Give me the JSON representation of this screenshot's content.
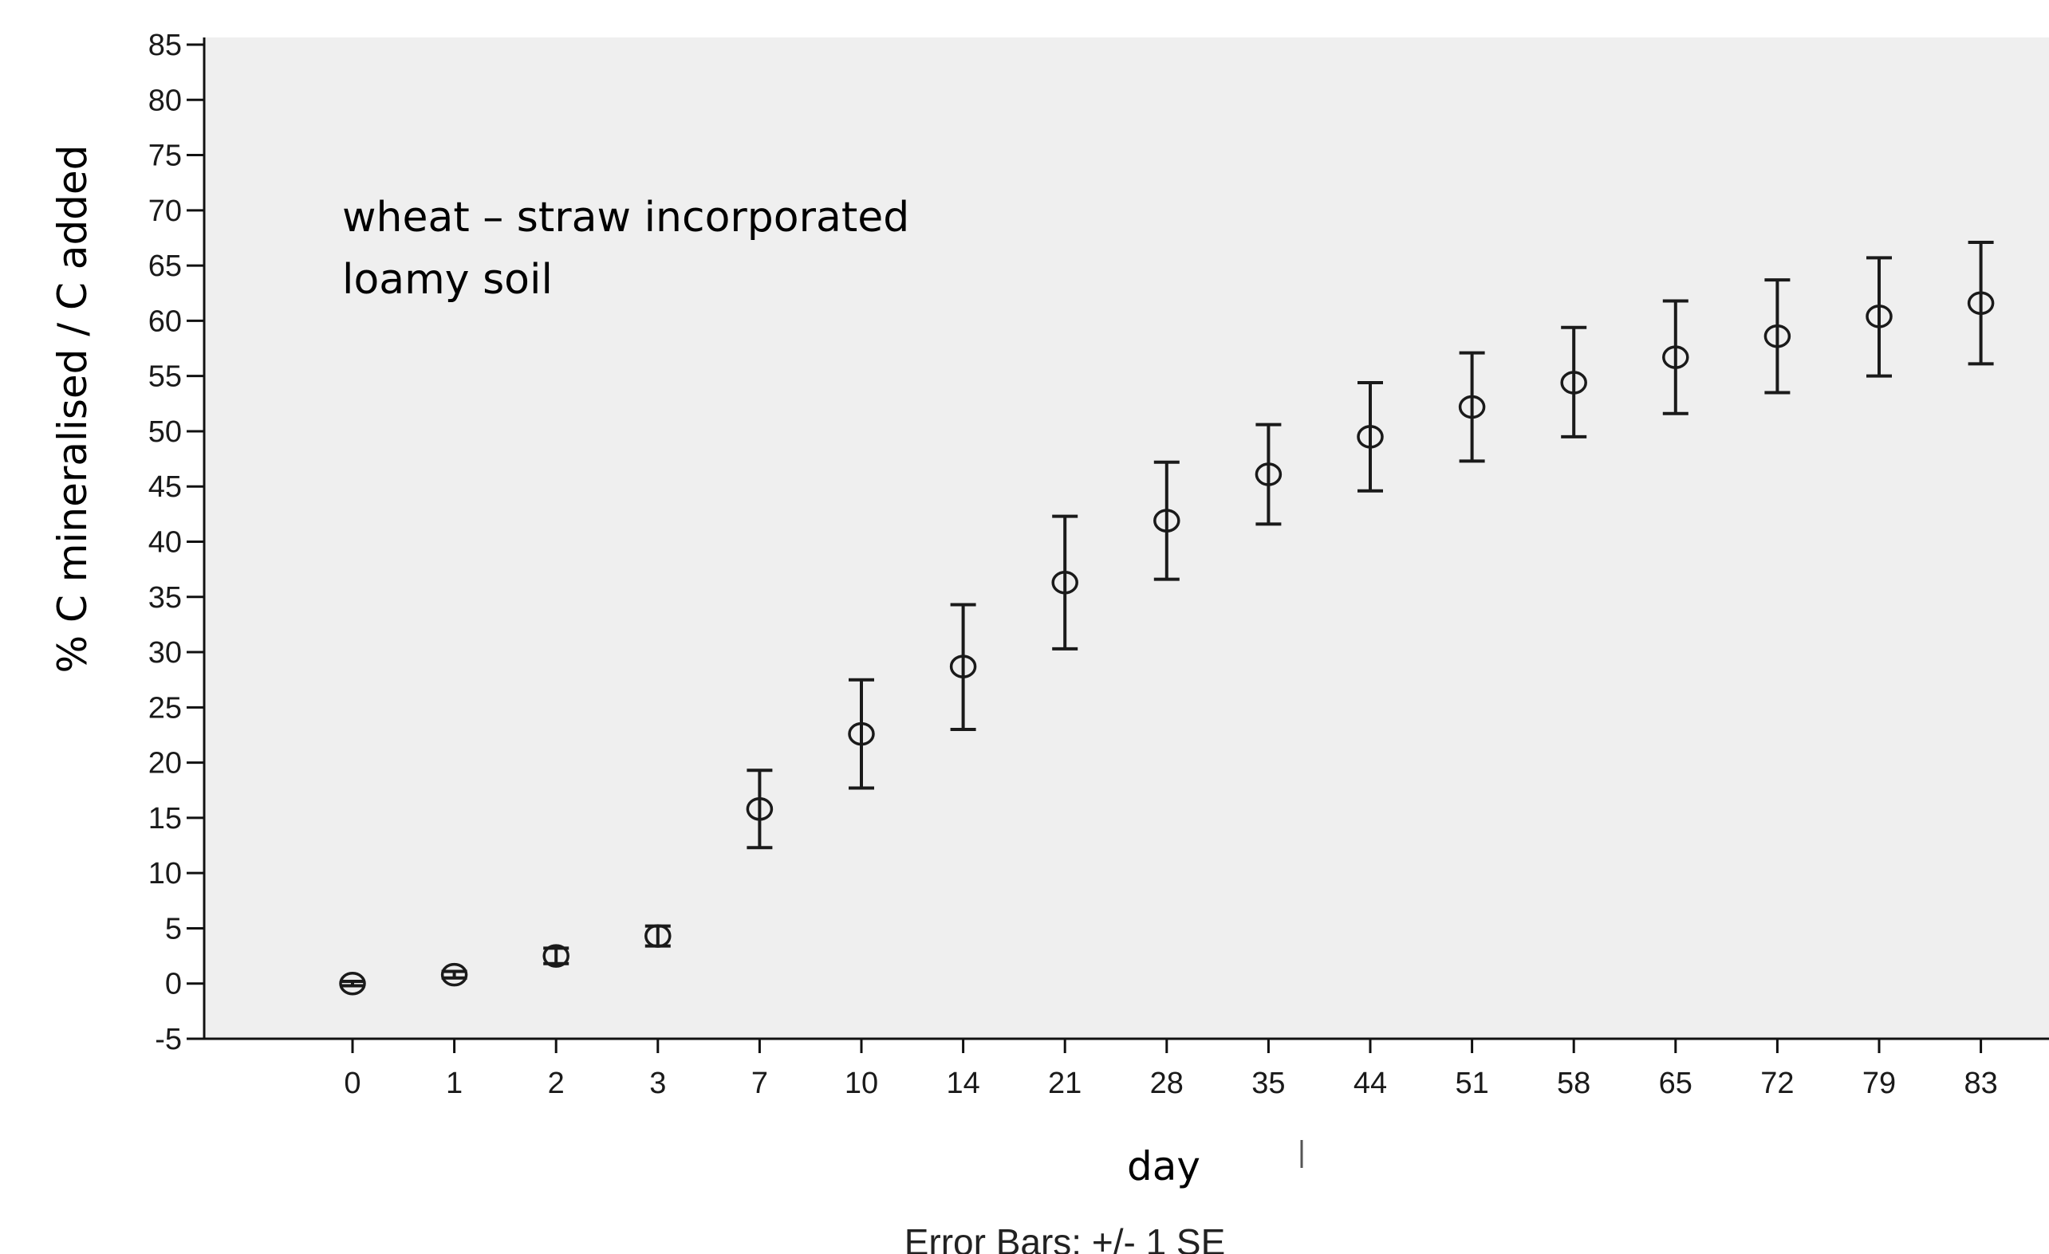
{
  "chart_data": {
    "type": "scatter",
    "x_categories": [
      "0",
      "1",
      "2",
      "3",
      "7",
      "10",
      "14",
      "21",
      "28",
      "35",
      "44",
      "51",
      "58",
      "65",
      "72",
      "79",
      "83"
    ],
    "series": [
      {
        "values": [
          0.0,
          0.8,
          2.5,
          4.3,
          15.8,
          22.6,
          28.7,
          36.3,
          41.9,
          46.1,
          49.5,
          52.2,
          54.4,
          56.7,
          58.6,
          60.4,
          61.6
        ],
        "error_lower": [
          -0.2,
          0.5,
          1.8,
          3.4,
          12.3,
          17.7,
          23.0,
          30.3,
          36.6,
          41.6,
          44.6,
          47.3,
          49.5,
          51.6,
          53.5,
          55.0,
          56.1
        ],
        "error_upper": [
          0.2,
          1.1,
          3.2,
          5.2,
          19.3,
          27.5,
          34.3,
          42.3,
          47.2,
          50.6,
          54.4,
          57.1,
          59.4,
          61.8,
          63.7,
          65.7,
          67.1
        ]
      }
    ],
    "ylim": [
      -5,
      85
    ],
    "yticks": [
      "-5",
      "0",
      "5",
      "10",
      "15",
      "20",
      "25",
      "30",
      "35",
      "40",
      "45",
      "50",
      "55",
      "60",
      "65",
      "70",
      "75",
      "80",
      "85"
    ],
    "ylabel": "% C mineralised / C added",
    "xlabel": "day",
    "annotation_lines": [
      "wheat – straw incorporated",
      "loamy soil"
    ],
    "footnote": "Error Bars:  +/- 1 SE",
    "grid": false,
    "colors": {
      "plot_background": "#efefef",
      "marker": "#1a1a1a",
      "axis": "#111111"
    }
  }
}
